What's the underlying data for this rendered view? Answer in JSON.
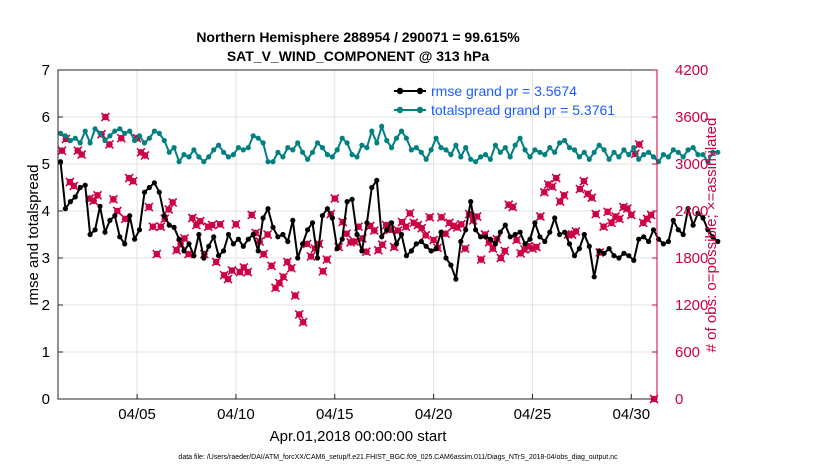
{
  "chart_data": {
    "type": "line",
    "title_line1": "Northern Hemisphere 288954 / 290071 = 99.615%",
    "title_line2": "SAT_V_WIND_COMPONENT @ 313 hPa",
    "xlabel": "Apr.01,2018 00:00:00 start",
    "ylabel_left": "rmse and totalspread",
    "ylabel_right": "# of obs: o=possible; ×=assimilated",
    "footer": "data file: /Users/raeder/DAI/ATM_forcXX/CAM6_setup/f.e21.FHIST_BGC.f09_025.CAM6assim.011/Diags_NTrS_2018-04/obs_diag_output.nc",
    "xlim": [
      1.0,
      31.3
    ],
    "x_ticks": [
      5,
      10,
      15,
      20,
      25,
      30
    ],
    "x_tick_labels": [
      "04/05",
      "04/10",
      "04/15",
      "04/20",
      "04/25",
      "04/30"
    ],
    "ylim_left": [
      0,
      7
    ],
    "y_ticks_left": [
      "0",
      "1",
      "2",
      "3",
      "4",
      "5",
      "6",
      "7"
    ],
    "ylim_right": [
      0,
      4200
    ],
    "y_ticks_right": [
      "0",
      "600",
      "1200",
      "1800",
      "2400",
      "3000",
      "3600",
      "4200"
    ],
    "series": [
      {
        "name": "rmse",
        "legend": "rmse grand pr = 3.5674",
        "color": "#000000",
        "x_start": 1.125,
        "x_step": 0.25,
        "values": [
          5.05,
          4.05,
          4.2,
          4.3,
          4.5,
          4.55,
          3.5,
          3.6,
          4.1,
          3.55,
          3.8,
          3.9,
          3.45,
          3.3,
          3.9,
          3.4,
          3.6,
          4.4,
          4.5,
          4.6,
          4.4,
          3.9,
          3.7,
          3.65,
          3.4,
          3.15,
          3.3,
          3.05,
          3.5,
          3.0,
          3.25,
          3.45,
          3.05,
          3.15,
          3.5,
          3.3,
          3.4,
          3.25,
          3.4,
          3.5,
          3.15,
          3.85,
          4.05,
          3.65,
          3.45,
          3.5,
          3.35,
          3.8,
          3.0,
          3.3,
          3.6,
          3.75,
          3.0,
          3.9,
          4.05,
          3.85,
          3.2,
          3.4,
          4.2,
          4.25,
          3.5,
          3.15,
          3.75,
          4.5,
          4.65,
          3.45,
          3.6,
          3.75,
          3.3,
          3.5,
          3.05,
          3.15,
          3.3,
          3.35,
          3.25,
          3.15,
          3.2,
          3.55,
          3.0,
          2.85,
          2.55,
          3.35,
          3.6,
          4.2,
          3.6,
          3.45,
          3.45,
          3.4,
          3.3,
          3.55,
          3.7,
          3.45,
          3.5,
          3.55,
          3.3,
          3.4,
          3.75,
          3.45,
          3.35,
          3.55,
          3.85,
          3.5,
          3.55,
          3.3,
          3.05,
          3.2,
          3.5,
          3.25,
          2.6,
          3.15,
          3.1,
          3.2,
          3.05,
          3.0,
          3.1,
          3.05,
          2.95,
          3.4,
          3.45,
          3.35,
          3.6,
          3.4,
          3.3,
          3.35,
          3.8,
          3.6,
          3.5,
          4.05,
          3.7,
          3.95,
          3.85,
          3.6,
          3.45,
          3.35
        ]
      },
      {
        "name": "totalspread",
        "legend": "totalspread grand pr = 5.3761",
        "color": "#008080",
        "x_start": 1.125,
        "x_step": 0.25,
        "values": [
          5.65,
          5.6,
          5.5,
          5.55,
          5.45,
          5.7,
          5.45,
          5.75,
          5.65,
          5.5,
          5.6,
          5.7,
          5.75,
          5.65,
          5.7,
          5.5,
          5.6,
          5.45,
          5.55,
          5.7,
          5.65,
          5.5,
          5.25,
          5.35,
          5.05,
          5.2,
          5.15,
          5.3,
          5.15,
          5.05,
          5.15,
          5.3,
          5.4,
          5.25,
          5.15,
          5.2,
          5.35,
          5.3,
          5.35,
          5.6,
          5.55,
          5.45,
          5.05,
          5.05,
          5.25,
          5.15,
          5.35,
          5.3,
          5.45,
          5.25,
          5.1,
          5.25,
          5.45,
          5.35,
          5.2,
          5.15,
          5.3,
          5.55,
          5.45,
          5.2,
          5.15,
          5.4,
          5.35,
          5.7,
          5.45,
          5.8,
          5.5,
          5.35,
          5.55,
          5.7,
          5.55,
          5.3,
          5.35,
          5.25,
          5.1,
          5.3,
          5.55,
          5.35,
          5.3,
          5.2,
          5.4,
          5.15,
          5.35,
          5.1,
          5.05,
          5.15,
          5.2,
          5.1,
          5.4,
          5.25,
          5.35,
          5.15,
          5.4,
          5.55,
          5.3,
          5.15,
          5.3,
          5.25,
          5.2,
          5.35,
          5.25,
          5.45,
          5.5,
          5.35,
          5.3,
          5.15,
          5.25,
          5.1,
          5.25,
          5.4,
          5.3,
          5.1,
          5.25,
          5.15,
          5.3,
          5.2,
          5.35,
          5.1,
          5.2,
          5.25,
          5.15,
          5.05,
          5.2,
          5.15,
          5.3,
          5.25,
          5.15,
          5.3,
          5.35,
          5.2,
          5.2,
          5.05,
          5.25,
          5.25
        ]
      },
      {
        "name": "obs_assimilated",
        "axis": "right",
        "color": "#cc0044",
        "points": [
          [
            1.2,
            3170
          ],
          [
            1.4,
            3320
          ],
          [
            1.6,
            2770
          ],
          [
            1.8,
            2720
          ],
          [
            2.0,
            3170
          ],
          [
            2.2,
            3120
          ],
          [
            2.6,
            2560
          ],
          [
            2.8,
            2530
          ],
          [
            3.0,
            2600
          ],
          [
            3.2,
            3380
          ],
          [
            3.4,
            3600
          ],
          [
            3.6,
            3250
          ],
          [
            3.8,
            2550
          ],
          [
            4.0,
            2400
          ],
          [
            4.2,
            3330
          ],
          [
            4.4,
            2300
          ],
          [
            4.6,
            2820
          ],
          [
            4.8,
            2780
          ],
          [
            5.0,
            3330
          ],
          [
            5.2,
            3150
          ],
          [
            5.4,
            3110
          ],
          [
            5.6,
            2450
          ],
          [
            5.8,
            2200
          ],
          [
            6.0,
            1850
          ],
          [
            6.2,
            2200
          ],
          [
            6.4,
            2300
          ],
          [
            6.6,
            2420
          ],
          [
            6.8,
            2510
          ],
          [
            7.0,
            1900
          ],
          [
            7.2,
            1980
          ],
          [
            7.4,
            2050
          ],
          [
            7.6,
            1850
          ],
          [
            7.8,
            2310
          ],
          [
            8.0,
            2220
          ],
          [
            8.2,
            2270
          ],
          [
            8.4,
            1850
          ],
          [
            8.6,
            2200
          ],
          [
            8.8,
            2220
          ],
          [
            9.0,
            1750
          ],
          [
            9.2,
            2230
          ],
          [
            9.4,
            1580
          ],
          [
            9.6,
            1530
          ],
          [
            9.8,
            1640
          ],
          [
            10.0,
            2230
          ],
          [
            10.2,
            1620
          ],
          [
            10.4,
            1680
          ],
          [
            10.6,
            1620
          ],
          [
            10.8,
            2350
          ],
          [
            11.0,
            2120
          ],
          [
            11.2,
            2010
          ],
          [
            11.4,
            1850
          ],
          [
            11.6,
            2100
          ],
          [
            11.8,
            1700
          ],
          [
            12.0,
            1420
          ],
          [
            12.2,
            1480
          ],
          [
            12.4,
            1560
          ],
          [
            12.6,
            1750
          ],
          [
            12.8,
            1670
          ],
          [
            13.0,
            1320
          ],
          [
            13.2,
            1080
          ],
          [
            13.4,
            980
          ],
          [
            13.6,
            1980
          ],
          [
            13.8,
            1820
          ],
          [
            14.0,
            1920
          ],
          [
            14.2,
            1980
          ],
          [
            14.4,
            1630
          ],
          [
            14.6,
            1780
          ],
          [
            14.8,
            2360
          ],
          [
            15.0,
            2560
          ],
          [
            15.2,
            1940
          ],
          [
            15.4,
            2260
          ],
          [
            15.6,
            2110
          ],
          [
            15.8,
            2000
          ],
          [
            16.0,
            2010
          ],
          [
            16.2,
            2200
          ],
          [
            16.4,
            2050
          ],
          [
            16.6,
            1880
          ],
          [
            16.8,
            2210
          ],
          [
            17.0,
            2150
          ],
          [
            17.2,
            1900
          ],
          [
            17.4,
            1970
          ],
          [
            17.6,
            2220
          ],
          [
            17.8,
            2160
          ],
          [
            18.0,
            1940
          ],
          [
            18.2,
            2150
          ],
          [
            18.4,
            2260
          ],
          [
            18.6,
            2200
          ],
          [
            18.8,
            2370
          ],
          [
            19.0,
            2250
          ],
          [
            19.2,
            2220
          ],
          [
            19.4,
            2180
          ],
          [
            19.6,
            2090
          ],
          [
            19.8,
            2320
          ],
          [
            20.0,
            2030
          ],
          [
            20.2,
            1930
          ],
          [
            20.4,
            2320
          ],
          [
            20.6,
            2110
          ],
          [
            20.8,
            2250
          ],
          [
            21.0,
            2210
          ],
          [
            21.2,
            2190
          ],
          [
            21.4,
            2230
          ],
          [
            21.6,
            1920
          ],
          [
            21.8,
            2360
          ],
          [
            22.0,
            2280
          ],
          [
            22.2,
            2330
          ],
          [
            22.4,
            1780
          ],
          [
            22.6,
            2100
          ],
          [
            22.8,
            2000
          ],
          [
            23.0,
            1920
          ],
          [
            23.2,
            2040
          ],
          [
            23.4,
            1800
          ],
          [
            23.6,
            1890
          ],
          [
            23.8,
            2480
          ],
          [
            24.0,
            2450
          ],
          [
            24.2,
            2030
          ],
          [
            24.4,
            1860
          ],
          [
            24.6,
            1910
          ],
          [
            24.8,
            1950
          ],
          [
            25.0,
            1920
          ],
          [
            25.2,
            1940
          ],
          [
            25.4,
            2330
          ],
          [
            25.6,
            2640
          ],
          [
            25.8,
            2740
          ],
          [
            26.0,
            2710
          ],
          [
            26.2,
            2820
          ],
          [
            26.4,
            2520
          ],
          [
            26.6,
            2600
          ],
          [
            26.8,
            2100
          ],
          [
            27.0,
            2100
          ],
          [
            27.2,
            2140
          ],
          [
            27.4,
            2680
          ],
          [
            27.6,
            2780
          ],
          [
            27.8,
            2620
          ],
          [
            28.0,
            2570
          ],
          [
            28.2,
            2360
          ],
          [
            28.4,
            1870
          ],
          [
            28.6,
            2200
          ],
          [
            28.8,
            2390
          ],
          [
            29.0,
            2250
          ],
          [
            29.2,
            2330
          ],
          [
            29.4,
            2300
          ],
          [
            29.6,
            2450
          ],
          [
            29.8,
            2430
          ],
          [
            30.0,
            2350
          ],
          [
            30.2,
            3130
          ],
          [
            30.4,
            3250
          ],
          [
            30.6,
            2250
          ],
          [
            30.8,
            2300
          ],
          [
            31.0,
            2350
          ],
          [
            31.15,
            0
          ]
        ]
      }
    ]
  }
}
